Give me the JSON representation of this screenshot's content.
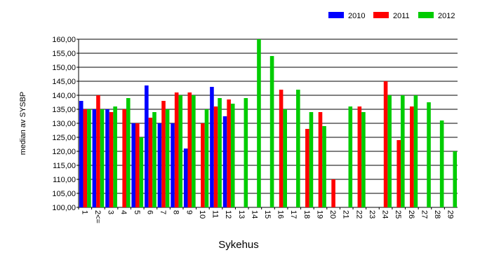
{
  "chart_data": {
    "type": "bar",
    "x_label": "Sykehus",
    "y_label": "median av SYSBP",
    "categories": [
      "1",
      "2<=",
      "3",
      "4",
      "5",
      "6",
      "7",
      "8",
      "9",
      "10",
      "11",
      "12",
      "13",
      "14",
      "15",
      "16",
      "17",
      "18",
      "19",
      "20",
      "21",
      "22",
      "23",
      "24",
      "25",
      "26",
      "27",
      "28",
      "29"
    ],
    "series": [
      {
        "name": "2010",
        "color": "#0000ff",
        "values": [
          138,
          135,
          135,
          null,
          130,
          143.5,
          130,
          130,
          121,
          null,
          143,
          132.5,
          null,
          null,
          null,
          null,
          null,
          null,
          null,
          null,
          null,
          null,
          null,
          null,
          null,
          null,
          null,
          null,
          null
        ]
      },
      {
        "name": "2011",
        "color": "#ff0000",
        "values": [
          135,
          140,
          134,
          135,
          130,
          132,
          138,
          141,
          141,
          130,
          136,
          138.5,
          null,
          null,
          null,
          142,
          null,
          128,
          134,
          110,
          null,
          136,
          null,
          145,
          124,
          136,
          null,
          null,
          null
        ]
      },
      {
        "name": "2012",
        "color": "#00cc00",
        "values": [
          135,
          135,
          136,
          139,
          125,
          134,
          135,
          140,
          140,
          135,
          139,
          137,
          139,
          160,
          154,
          135,
          142,
          134,
          129,
          null,
          136,
          134,
          null,
          140,
          140,
          140,
          137.5,
          131,
          120
        ]
      }
    ],
    "ylim": [
      100,
      160
    ],
    "yticks": [
      {
        "value": 100,
        "label": "100,00"
      },
      {
        "value": 105,
        "label": "105,00"
      },
      {
        "value": 110,
        "label": "110,00"
      },
      {
        "value": 115,
        "label": "115,00"
      },
      {
        "value": 120,
        "label": "120,00"
      },
      {
        "value": 125,
        "label": "125,00"
      },
      {
        "value": 130,
        "label": "130,00"
      },
      {
        "value": 135,
        "label": "135,00"
      },
      {
        "value": 140,
        "label": "140,00"
      },
      {
        "value": 145,
        "label": "145,00"
      },
      {
        "value": 150,
        "label": "150,00"
      },
      {
        "value": 155,
        "label": "155,00"
      },
      {
        "value": 160,
        "label": "160,00"
      }
    ],
    "grid": true,
    "legend": "top-right"
  }
}
